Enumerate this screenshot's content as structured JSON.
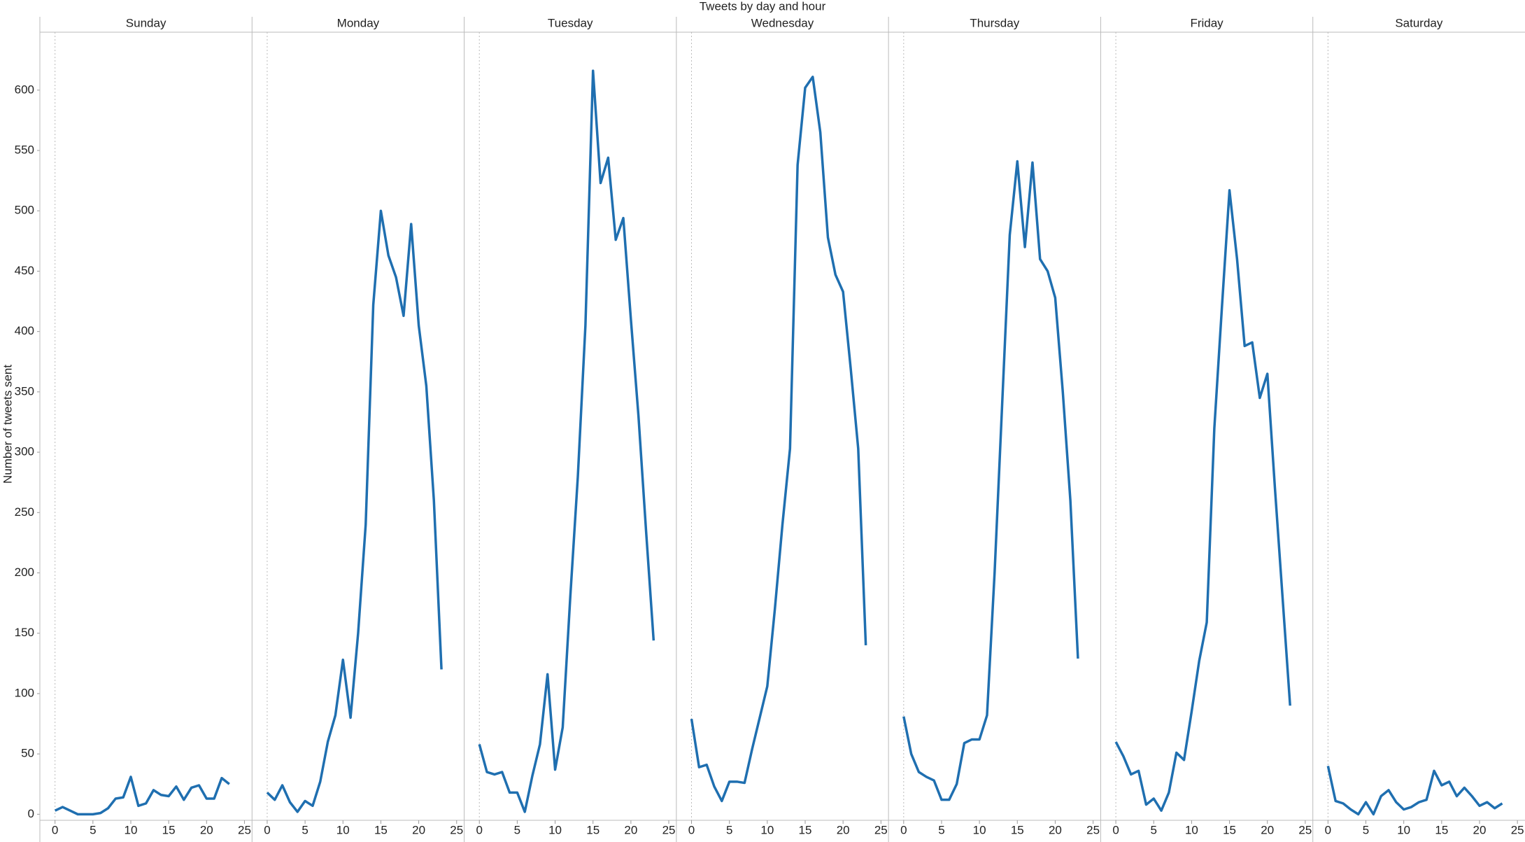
{
  "chart_data": {
    "type": "line",
    "title": "Tweets by day and hour",
    "y_label": "Number of tweets sent",
    "x": [
      0,
      1,
      2,
      3,
      4,
      5,
      6,
      7,
      8,
      9,
      10,
      11,
      12,
      13,
      14,
      15,
      16,
      17,
      18,
      19,
      20,
      21,
      22,
      23
    ],
    "xlim": [
      -2,
      26
    ],
    "xticks": [
      0,
      5,
      10,
      15,
      20,
      25
    ],
    "ylim": [
      -5,
      648
    ],
    "yticks": [
      0,
      50,
      100,
      150,
      200,
      250,
      300,
      350,
      400,
      450,
      500,
      550,
      600
    ],
    "series": [
      {
        "name": "Sunday",
        "color": "#1f6fb0",
        "values": [
          3,
          6,
          3,
          0,
          0,
          0,
          1,
          5,
          13,
          14,
          31,
          7,
          9,
          20,
          16,
          15,
          23,
          12,
          22,
          24,
          13,
          13,
          30,
          25
        ]
      },
      {
        "name": "Monday",
        "color": "#1f6fb0",
        "values": [
          18,
          12,
          24,
          10,
          2,
          11,
          7,
          27,
          60,
          82,
          128,
          80,
          150,
          240,
          422,
          500,
          463,
          445,
          413,
          489,
          405,
          355,
          260,
          120
        ]
      },
      {
        "name": "Tuesday",
        "color": "#1f6fb0",
        "values": [
          58,
          35,
          33,
          35,
          18,
          18,
          2,
          32,
          58,
          116,
          37,
          72,
          180,
          280,
          405,
          616,
          523,
          544,
          476,
          494,
          410,
          330,
          235,
          144
        ]
      },
      {
        "name": "Wednesday",
        "color": "#1f6fb0",
        "values": [
          79,
          39,
          41,
          23,
          11,
          27,
          27,
          26,
          54,
          80,
          106,
          170,
          240,
          303,
          538,
          602,
          611,
          565,
          478,
          447,
          433,
          370,
          303,
          140
        ]
      },
      {
        "name": "Thursday",
        "color": "#1f6fb0",
        "values": [
          81,
          50,
          35,
          31,
          28,
          12,
          12,
          25,
          59,
          62,
          62,
          82,
          200,
          340,
          480,
          541,
          470,
          540,
          460,
          450,
          428,
          350,
          260,
          129
        ]
      },
      {
        "name": "Friday",
        "color": "#1f6fb0",
        "values": [
          60,
          48,
          33,
          36,
          8,
          13,
          3,
          18,
          51,
          45,
          85,
          127,
          159,
          320,
          420,
          517,
          460,
          388,
          391,
          345,
          365,
          270,
          180,
          90
        ]
      },
      {
        "name": "Saturday",
        "color": "#1f6fb0",
        "values": [
          40,
          11,
          9,
          4,
          0,
          10,
          0,
          15,
          20,
          10,
          4,
          6,
          10,
          12,
          36,
          24,
          27,
          15,
          22,
          15,
          7,
          10,
          5,
          9
        ]
      }
    ]
  }
}
